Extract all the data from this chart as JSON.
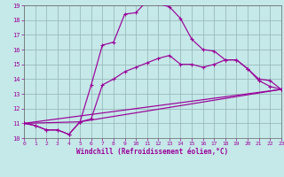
{
  "bg_color": "#c5e8e8",
  "line_color": "#990099",
  "grid_color": "#99bbbb",
  "xlim": [
    0,
    23
  ],
  "ylim": [
    10,
    19
  ],
  "xticks": [
    0,
    1,
    2,
    3,
    4,
    5,
    6,
    7,
    8,
    9,
    10,
    11,
    12,
    13,
    14,
    15,
    16,
    17,
    18,
    19,
    20,
    21,
    22,
    23
  ],
  "yticks": [
    10,
    11,
    12,
    13,
    14,
    15,
    16,
    17,
    18,
    19
  ],
  "xlabel": "Windchill (Refroidissement éolien,°C)",
  "curve1_x": [
    0,
    1,
    2,
    3,
    4,
    5,
    6,
    7,
    8,
    9,
    10,
    11,
    12,
    13,
    14,
    15,
    16,
    17,
    18,
    19,
    20,
    21,
    22,
    23
  ],
  "curve1_y": [
    11.0,
    10.85,
    10.55,
    10.55,
    10.25,
    11.1,
    13.6,
    16.3,
    16.5,
    18.4,
    18.5,
    19.3,
    19.1,
    18.9,
    18.1,
    16.7,
    16.0,
    15.9,
    15.3,
    15.3,
    14.7,
    13.9,
    13.5,
    13.3
  ],
  "curve2_x": [
    0,
    1,
    2,
    3,
    4,
    5,
    23
  ],
  "curve2_y": [
    11.0,
    10.85,
    10.55,
    10.55,
    10.25,
    11.1,
    13.3
  ],
  "curve3_x": [
    0,
    5,
    6,
    7,
    8,
    9,
    10,
    11,
    12,
    13,
    14,
    15,
    16,
    17,
    18,
    19,
    20,
    21,
    22,
    23
  ],
  "curve3_y": [
    11.0,
    11.1,
    11.3,
    13.6,
    14.0,
    14.5,
    14.8,
    15.1,
    15.4,
    15.6,
    15.0,
    15.0,
    14.8,
    15.0,
    15.3,
    15.3,
    14.7,
    14.0,
    13.9,
    13.3
  ],
  "curve4_x": [
    0,
    23
  ],
  "curve4_y": [
    11.0,
    13.3
  ]
}
